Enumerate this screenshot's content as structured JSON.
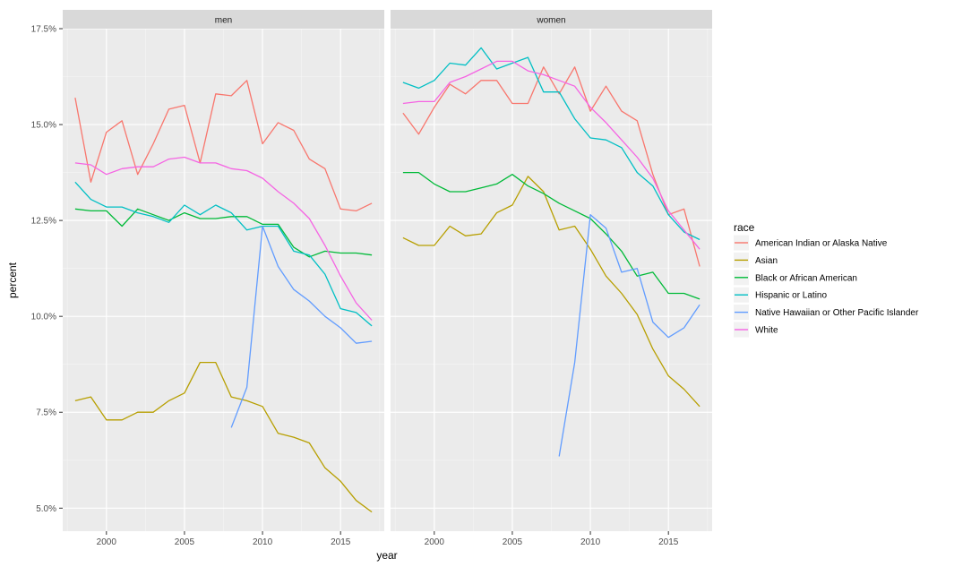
{
  "chart_data": {
    "type": "line",
    "facets": [
      "men",
      "women"
    ],
    "xlabel": "year",
    "ylabel": "percent",
    "xlim": [
      1997.2,
      2017.8
    ],
    "ylim": [
      4.4,
      17.5
    ],
    "xticks": [
      2000,
      2005,
      2010,
      2015
    ],
    "xtick_labels": [
      "2000",
      "2005",
      "2010",
      "2015"
    ],
    "yticks": [
      5.0,
      7.5,
      10.0,
      12.5,
      15.0,
      17.5
    ],
    "ytick_labels": [
      "5.0%",
      "7.5%",
      "10.0%",
      "12.5%",
      "15.0%",
      "17.5%"
    ],
    "grid": true,
    "legend": {
      "title": "race",
      "placement": "right",
      "entries": [
        "American Indian or Alaska Native",
        "Asian",
        "Black or African American",
        "Hispanic or Latino",
        "Native Hawaiian or Other Pacific Islander",
        "White"
      ]
    },
    "colors": {
      "American Indian or Alaska Native": "#F8766D",
      "Asian": "#B79F00",
      "Black or African American": "#00BA38",
      "Hispanic or Latino": "#00BFC4",
      "Native Hawaiian or Other Pacific Islander": "#619CFF",
      "White": "#F564E3"
    },
    "panels": [
      {
        "facet": "men",
        "series": [
          {
            "name": "American Indian or Alaska Native",
            "x": [
              1998,
              1999,
              2000,
              2001,
              2002,
              2003,
              2004,
              2005,
              2006,
              2007,
              2008,
              2009,
              2010,
              2011,
              2012,
              2013,
              2014,
              2015,
              2016,
              2017
            ],
            "y": [
              15.7,
              13.5,
              14.8,
              15.1,
              13.7,
              14.5,
              15.4,
              15.5,
              14.0,
              15.8,
              15.75,
              16.15,
              14.5,
              15.05,
              14.85,
              14.1,
              13.85,
              12.8,
              12.75,
              12.95
            ]
          },
          {
            "name": "Asian",
            "x": [
              1998,
              1999,
              2000,
              2001,
              2002,
              2003,
              2004,
              2005,
              2006,
              2007,
              2008,
              2009,
              2010,
              2011,
              2012,
              2013,
              2014,
              2015,
              2016,
              2017
            ],
            "y": [
              7.8,
              7.9,
              7.3,
              7.3,
              7.5,
              7.5,
              7.8,
              8.0,
              8.8,
              8.8,
              7.9,
              7.8,
              7.65,
              6.95,
              6.85,
              6.7,
              6.05,
              5.7,
              5.2,
              4.9
            ]
          },
          {
            "name": "Black or African American",
            "x": [
              1998,
              1999,
              2000,
              2001,
              2002,
              2003,
              2004,
              2005,
              2006,
              2007,
              2008,
              2009,
              2010,
              2011,
              2012,
              2013,
              2014,
              2015,
              2016,
              2017
            ],
            "y": [
              12.8,
              12.75,
              12.75,
              12.35,
              12.8,
              12.65,
              12.5,
              12.7,
              12.55,
              12.55,
              12.6,
              12.6,
              12.4,
              12.4,
              11.8,
              11.55,
              11.7,
              11.65,
              11.65,
              11.6
            ]
          },
          {
            "name": "Hispanic or Latino",
            "x": [
              1998,
              1999,
              2000,
              2001,
              2002,
              2003,
              2004,
              2005,
              2006,
              2007,
              2008,
              2009,
              2010,
              2011,
              2012,
              2013,
              2014,
              2015,
              2016,
              2017
            ],
            "y": [
              13.5,
              13.05,
              12.85,
              12.85,
              12.7,
              12.6,
              12.45,
              12.9,
              12.65,
              12.9,
              12.7,
              12.25,
              12.35,
              12.35,
              11.7,
              11.6,
              11.1,
              10.2,
              10.1,
              9.75
            ]
          },
          {
            "name": "Native Hawaiian or Other Pacific Islander",
            "x": [
              2008,
              2009,
              2010,
              2011,
              2012,
              2013,
              2014,
              2015,
              2016,
              2017
            ],
            "y": [
              7.1,
              8.15,
              12.35,
              11.3,
              10.7,
              10.4,
              10.0,
              9.7,
              9.3,
              9.35
            ]
          },
          {
            "name": "White",
            "x": [
              1998,
              1999,
              2000,
              2001,
              2002,
              2003,
              2004,
              2005,
              2006,
              2007,
              2008,
              2009,
              2010,
              2011,
              2012,
              2013,
              2014,
              2015,
              2016,
              2017
            ],
            "y": [
              14.0,
              13.95,
              13.7,
              13.85,
              13.9,
              13.9,
              14.1,
              14.15,
              14.0,
              14.0,
              13.85,
              13.8,
              13.6,
              13.25,
              12.95,
              12.55,
              11.85,
              11.05,
              10.35,
              9.9
            ]
          }
        ]
      },
      {
        "facet": "women",
        "series": [
          {
            "name": "American Indian or Alaska Native",
            "x": [
              1998,
              1999,
              2000,
              2001,
              2002,
              2003,
              2004,
              2005,
              2006,
              2007,
              2008,
              2009,
              2010,
              2011,
              2012,
              2013,
              2014,
              2015,
              2016,
              2017
            ],
            "y": [
              15.3,
              14.75,
              15.45,
              16.05,
              15.8,
              16.15,
              16.15,
              15.55,
              15.55,
              16.5,
              15.8,
              16.5,
              15.35,
              16.0,
              15.35,
              15.1,
              13.7,
              12.65,
              12.8,
              11.3
            ]
          },
          {
            "name": "Asian",
            "x": [
              1998,
              1999,
              2000,
              2001,
              2002,
              2003,
              2004,
              2005,
              2006,
              2007,
              2008,
              2009,
              2010,
              2011,
              2012,
              2013,
              2014,
              2015,
              2016,
              2017
            ],
            "y": [
              12.05,
              11.85,
              11.85,
              12.35,
              12.1,
              12.15,
              12.7,
              12.9,
              13.65,
              13.25,
              12.25,
              12.35,
              11.75,
              11.05,
              10.6,
              10.05,
              9.15,
              8.45,
              8.1,
              7.65
            ]
          },
          {
            "name": "Black or African American",
            "x": [
              1998,
              1999,
              2000,
              2001,
              2002,
              2003,
              2004,
              2005,
              2006,
              2007,
              2008,
              2009,
              2010,
              2011,
              2012,
              2013,
              2014,
              2015,
              2016,
              2017
            ],
            "y": [
              13.75,
              13.75,
              13.45,
              13.25,
              13.25,
              13.35,
              13.45,
              13.7,
              13.4,
              13.2,
              12.95,
              12.75,
              12.55,
              12.15,
              11.7,
              11.05,
              11.15,
              10.6,
              10.6,
              10.45
            ]
          },
          {
            "name": "Hispanic or Latino",
            "x": [
              1998,
              1999,
              2000,
              2001,
              2002,
              2003,
              2004,
              2005,
              2006,
              2007,
              2008,
              2009,
              2010,
              2011,
              2012,
              2013,
              2014,
              2015,
              2016,
              2017
            ],
            "y": [
              16.1,
              15.95,
              16.15,
              16.6,
              16.55,
              17.0,
              16.45,
              16.6,
              16.75,
              15.85,
              15.85,
              15.15,
              14.65,
              14.6,
              14.4,
              13.75,
              13.4,
              12.65,
              12.2,
              12.0
            ]
          },
          {
            "name": "Native Hawaiian or Other Pacific Islander",
            "x": [
              2008,
              2009,
              2010,
              2011,
              2012,
              2013,
              2014,
              2015,
              2016,
              2017
            ],
            "y": [
              6.35,
              8.8,
              12.65,
              12.3,
              11.15,
              11.25,
              9.85,
              9.45,
              9.7,
              10.3
            ]
          },
          {
            "name": "White",
            "x": [
              1998,
              1999,
              2000,
              2001,
              2002,
              2003,
              2004,
              2005,
              2006,
              2007,
              2008,
              2009,
              2010,
              2011,
              2012,
              2013,
              2014,
              2015,
              2016,
              2017
            ],
            "y": [
              15.55,
              15.6,
              15.6,
              16.1,
              16.25,
              16.45,
              16.65,
              16.65,
              16.4,
              16.3,
              16.15,
              16.0,
              15.45,
              15.05,
              14.6,
              14.15,
              13.6,
              12.75,
              12.25,
              11.75
            ]
          }
        ]
      }
    ]
  }
}
